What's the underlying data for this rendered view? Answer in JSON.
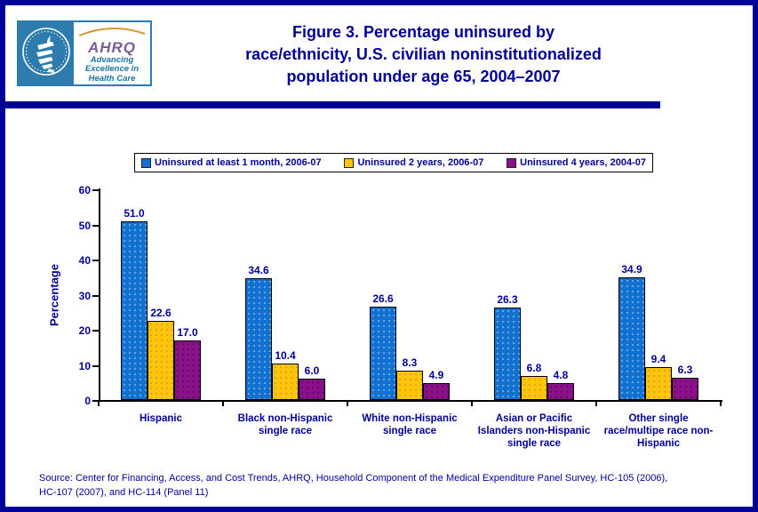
{
  "header": {
    "title": "Figure 3. Percentage uninsured by\nrace/ethnicity, U.S. civilian noninstitutionalized\npopulation under age 65, 2004–2007",
    "logo": {
      "ahrq": "AHRQ",
      "tagline": "Advancing\nExcellence in\nHealth Care"
    }
  },
  "chart_data": {
    "type": "bar",
    "title": "Figure 3. Percentage uninsured by race/ethnicity, U.S. civilian noninstitutionalized population under age 65, 2004–2007",
    "categories": [
      "Hispanic",
      "Black non-Hispanic\nsingle race",
      "White non-Hispanic\nsingle race",
      "Asian or Pacific\nIslanders non-Hispanic\nsingle race",
      "Other single\nrace/multipe race non-\nHispanic"
    ],
    "series": [
      {
        "name": "Uninsured at least 1 month, 2006-07",
        "color": "#1170D0",
        "css": "bar-blue",
        "values": [
          51.0,
          34.6,
          26.6,
          26.3,
          34.9
        ]
      },
      {
        "name": "Uninsured 2 years, 2006-07",
        "color": "#FFC40D",
        "css": "bar-yellow",
        "values": [
          22.6,
          10.4,
          8.3,
          6.8,
          9.4
        ]
      },
      {
        "name": "Uninsured 4 years, 2004-07",
        "color": "#8B118B",
        "css": "bar-purple",
        "values": [
          17.0,
          6.0,
          4.9,
          4.8,
          6.3
        ]
      }
    ],
    "xlabel": "",
    "ylabel": "Percentage",
    "ylim": [
      0,
      60
    ],
    "ytick_step": 10,
    "grid": false,
    "legend_position": "top",
    "value_label_decimals": 1
  },
  "footer": {
    "source": "Source: Center for Financing, Access, and Cost Trends, AHRQ, Household Component of the Medical Expenditure Panel Survey, HC-105 (2006),\nHC-107 (2007), and HC-114 (Panel 11)"
  },
  "colors": {
    "accent_navy": "#000099",
    "axis_black": "#000000",
    "bar_blue": "#1170D0",
    "bar_yellow": "#FFC40D",
    "bar_purple": "#8B118B",
    "logo_teal": "#2E7CAD",
    "ahrq_purple": "#7A5C99"
  }
}
